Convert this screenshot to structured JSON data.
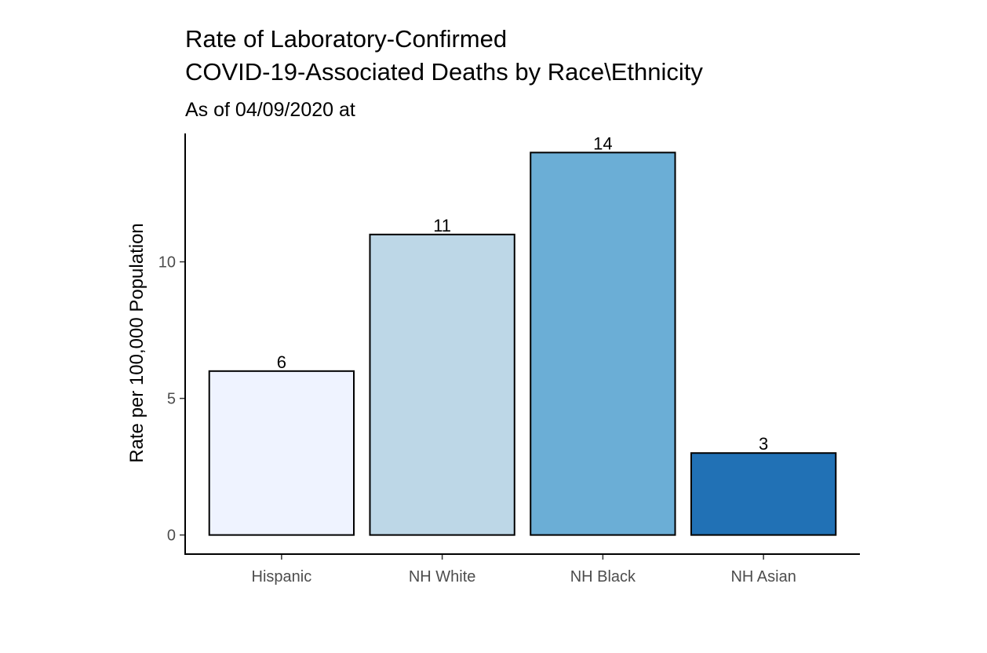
{
  "chart_data": {
    "type": "bar",
    "title_lines": [
      "Rate of Laboratory-Confirmed",
      "COVID-19-Associated Deaths by Race\\Ethnicity"
    ],
    "subtitle": "As of 04/09/2020 at",
    "xlabel": "",
    "ylabel": "Rate per 100,000 Population",
    "categories": [
      "Hispanic",
      "NH White",
      "NH Black",
      "NH Asian"
    ],
    "values": [
      6,
      11,
      14,
      3
    ],
    "data_labels": [
      "6",
      "11",
      "14",
      "3"
    ],
    "bar_colors": [
      "#eff3ff",
      "#bdd7e7",
      "#6baed6",
      "#2171b5"
    ],
    "ylim": [
      -0.7,
      14.7
    ],
    "yticks": [
      0,
      5,
      10
    ],
    "ytick_labels": [
      "0",
      "5",
      "10"
    ],
    "grid": false,
    "legend": "none"
  }
}
